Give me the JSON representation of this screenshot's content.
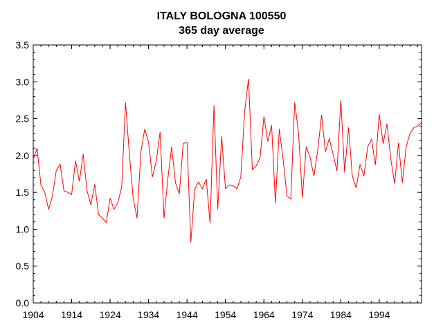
{
  "chart_data": {
    "type": "line",
    "title": "ITALY BOLOGNA 100550",
    "subtitle": "365 day average",
    "xlabel": "",
    "ylabel": "",
    "xlim": [
      1904,
      2005
    ],
    "ylim": [
      0,
      3.5
    ],
    "x_ticks": [
      1904,
      1914,
      1924,
      1934,
      1944,
      1954,
      1964,
      1974,
      1984,
      1994
    ],
    "x_tick_labels": [
      "1904",
      "1914",
      "1924",
      "1934",
      "1944",
      "1954",
      "1964",
      "1974",
      "1984",
      "1994"
    ],
    "y_ticks": [
      0,
      0.5,
      1.0,
      1.5,
      2.0,
      2.5,
      3.0,
      3.5
    ],
    "y_tick_labels": [
      "0.0",
      "0.5",
      "1.0",
      "1.5",
      "2.0",
      "2.5",
      "3.0",
      "3.5"
    ],
    "grid": false,
    "series": [
      {
        "color": "#ff0000",
        "x": [
          1904,
          1905,
          1906,
          1907,
          1908,
          1909,
          1910,
          1911,
          1912,
          1913,
          1914,
          1915,
          1916,
          1917,
          1918,
          1919,
          1920,
          1921,
          1922,
          1923,
          1924,
          1925,
          1926,
          1927,
          1928,
          1929,
          1930,
          1931,
          1932,
          1933,
          1934,
          1935,
          1936,
          1937,
          1938,
          1939,
          1940,
          1941,
          1942,
          1943,
          1944,
          1945,
          1946,
          1947,
          1948,
          1949,
          1950,
          1951,
          1952,
          1953,
          1954,
          1955,
          1956,
          1957,
          1958,
          1959,
          1960,
          1961,
          1962,
          1963,
          1964,
          1965,
          1966,
          1967,
          1968,
          1969,
          1970,
          1971,
          1972,
          1973,
          1974,
          1975,
          1976,
          1977,
          1978,
          1979,
          1980,
          1981,
          1982,
          1983,
          1984,
          1985,
          1986,
          1987,
          1988,
          1989,
          1990,
          1991,
          1992,
          1993,
          1994,
          1995,
          1996,
          1997,
          1998,
          1999,
          2000,
          2001,
          2002,
          2003,
          2004,
          2005
        ],
        "values": [
          1.95,
          2.1,
          1.6,
          1.5,
          1.27,
          1.45,
          1.8,
          1.88,
          1.52,
          1.5,
          1.47,
          1.93,
          1.65,
          2.02,
          1.52,
          1.33,
          1.61,
          1.2,
          1.15,
          1.09,
          1.42,
          1.27,
          1.36,
          1.57,
          2.72,
          2.02,
          1.42,
          1.15,
          2.05,
          2.36,
          2.18,
          1.71,
          1.92,
          2.32,
          1.15,
          1.68,
          2.12,
          1.63,
          1.48,
          2.16,
          2.18,
          0.82,
          1.55,
          1.64,
          1.55,
          1.68,
          1.08,
          2.68,
          1.27,
          2.26,
          1.55,
          1.6,
          1.59,
          1.55,
          1.71,
          2.6,
          3.04,
          1.81,
          1.86,
          1.97,
          2.53,
          2.19,
          2.41,
          1.35,
          2.36,
          1.95,
          1.45,
          1.41,
          2.72,
          2.31,
          1.43,
          2.12,
          1.98,
          1.72,
          2.07,
          2.55,
          2.05,
          2.23,
          2.02,
          1.79,
          2.75,
          1.77,
          2.38,
          1.72,
          1.56,
          1.88,
          1.72,
          2.12,
          2.22,
          1.87,
          2.56,
          2.16,
          2.43,
          1.95,
          1.62,
          2.17,
          1.63,
          2.12,
          2.3,
          2.38,
          2.4,
          2.45
        ]
      }
    ],
    "plot_background": "#ffffff",
    "axis_color": "#000000"
  }
}
